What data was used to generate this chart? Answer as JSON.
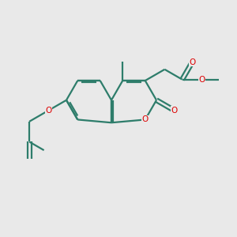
{
  "bg_color": "#e9e9e9",
  "bond_color": "#2e7d6b",
  "oxygen_color": "#dd0000",
  "lw": 1.6,
  "figsize": [
    3.0,
    3.0
  ],
  "dpi": 100,
  "xlim": [
    0,
    10
  ],
  "ylim": [
    0,
    10
  ]
}
